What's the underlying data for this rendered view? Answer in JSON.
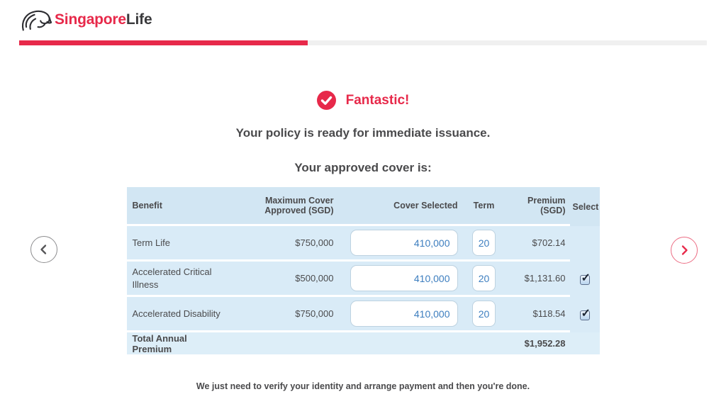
{
  "brand": {
    "logo_text_primary": "Singapore",
    "logo_text_secondary": "Life"
  },
  "progress": {
    "percent": 42
  },
  "status": {
    "title": "Fantastic!"
  },
  "headings": {
    "main": "Your policy is ready for immediate issuance.",
    "sub": "Your approved cover is:"
  },
  "table": {
    "columns": [
      "Benefit",
      "Maximum Cover Approved (SGD)",
      "Cover Selected",
      "Term",
      "Premium (SGD)",
      "Select"
    ],
    "rows": [
      {
        "benefit": "Term Life",
        "max_cover": "$750,000",
        "cover_selected": "410,000",
        "term": "20",
        "premium": "$702.14",
        "has_checkbox": false,
        "checked": false
      },
      {
        "benefit": "Accelerated Critical Illness",
        "max_cover": "$500,000",
        "cover_selected": "410,000",
        "term": "20",
        "premium": "$1,131.60",
        "has_checkbox": true,
        "checked": true
      },
      {
        "benefit": "Accelerated Disability",
        "max_cover": "$750,000",
        "cover_selected": "410,000",
        "term": "20",
        "premium": "$118.54",
        "has_checkbox": true,
        "checked": true
      }
    ],
    "total_row": {
      "label": "Total Annual Premium",
      "value": "$1,952.28"
    }
  },
  "footer": {
    "note": "We just need to verify your identity and arrange payment and then you're done."
  },
  "colors": {
    "brand_red": "#e7294a",
    "progress_track": "#f0f0f0",
    "table_header_bg": "#d2e6f3",
    "table_row_bg": "#d9ebf7",
    "table_total_bg": "#ddeef8",
    "input_text_blue": "#3d7ebf",
    "text_dark": "#4a4a4c"
  }
}
